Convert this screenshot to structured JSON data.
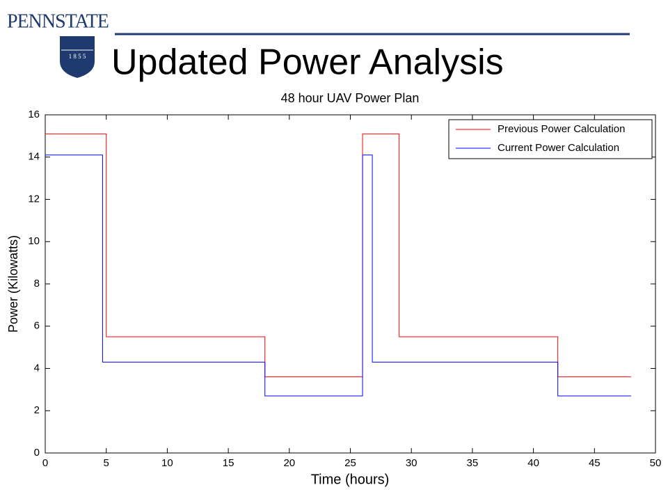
{
  "logo": {
    "wordmark": "PENNSTATE",
    "year": "1 8 5 5"
  },
  "slide_title": "Updated Power Analysis",
  "chart_data": {
    "type": "line",
    "title": "48 hour UAV Power Plan",
    "x_label": "Time (hours)",
    "y_label": "Power (Kilowatts)",
    "xlim": [
      0,
      50
    ],
    "xticks": [
      0,
      5,
      10,
      15,
      20,
      25,
      30,
      35,
      40,
      45,
      50
    ],
    "ylim": [
      0,
      16
    ],
    "yticks": [
      0,
      2,
      4,
      6,
      8,
      10,
      12,
      14,
      16
    ],
    "grid": false,
    "legend": "upper right",
    "series": [
      {
        "name": "Previous Power Calculation",
        "color": "#ff0000",
        "x": [
          0,
          5,
          5,
          18,
          18,
          26,
          26,
          29,
          29,
          42,
          42,
          48
        ],
        "values": [
          15.1,
          15.1,
          5.5,
          5.5,
          3.6,
          3.6,
          15.1,
          15.1,
          5.5,
          5.5,
          3.6,
          3.6
        ]
      },
      {
        "name": "Current Power Calculation",
        "color": "#0000ff",
        "x": [
          0,
          4.7,
          4.7,
          18,
          18,
          26,
          26,
          26.8,
          26.8,
          42,
          42,
          48
        ],
        "values": [
          14.1,
          14.1,
          4.3,
          4.3,
          2.7,
          2.7,
          14.1,
          14.1,
          4.3,
          4.3,
          2.7,
          2.7
        ]
      }
    ]
  }
}
